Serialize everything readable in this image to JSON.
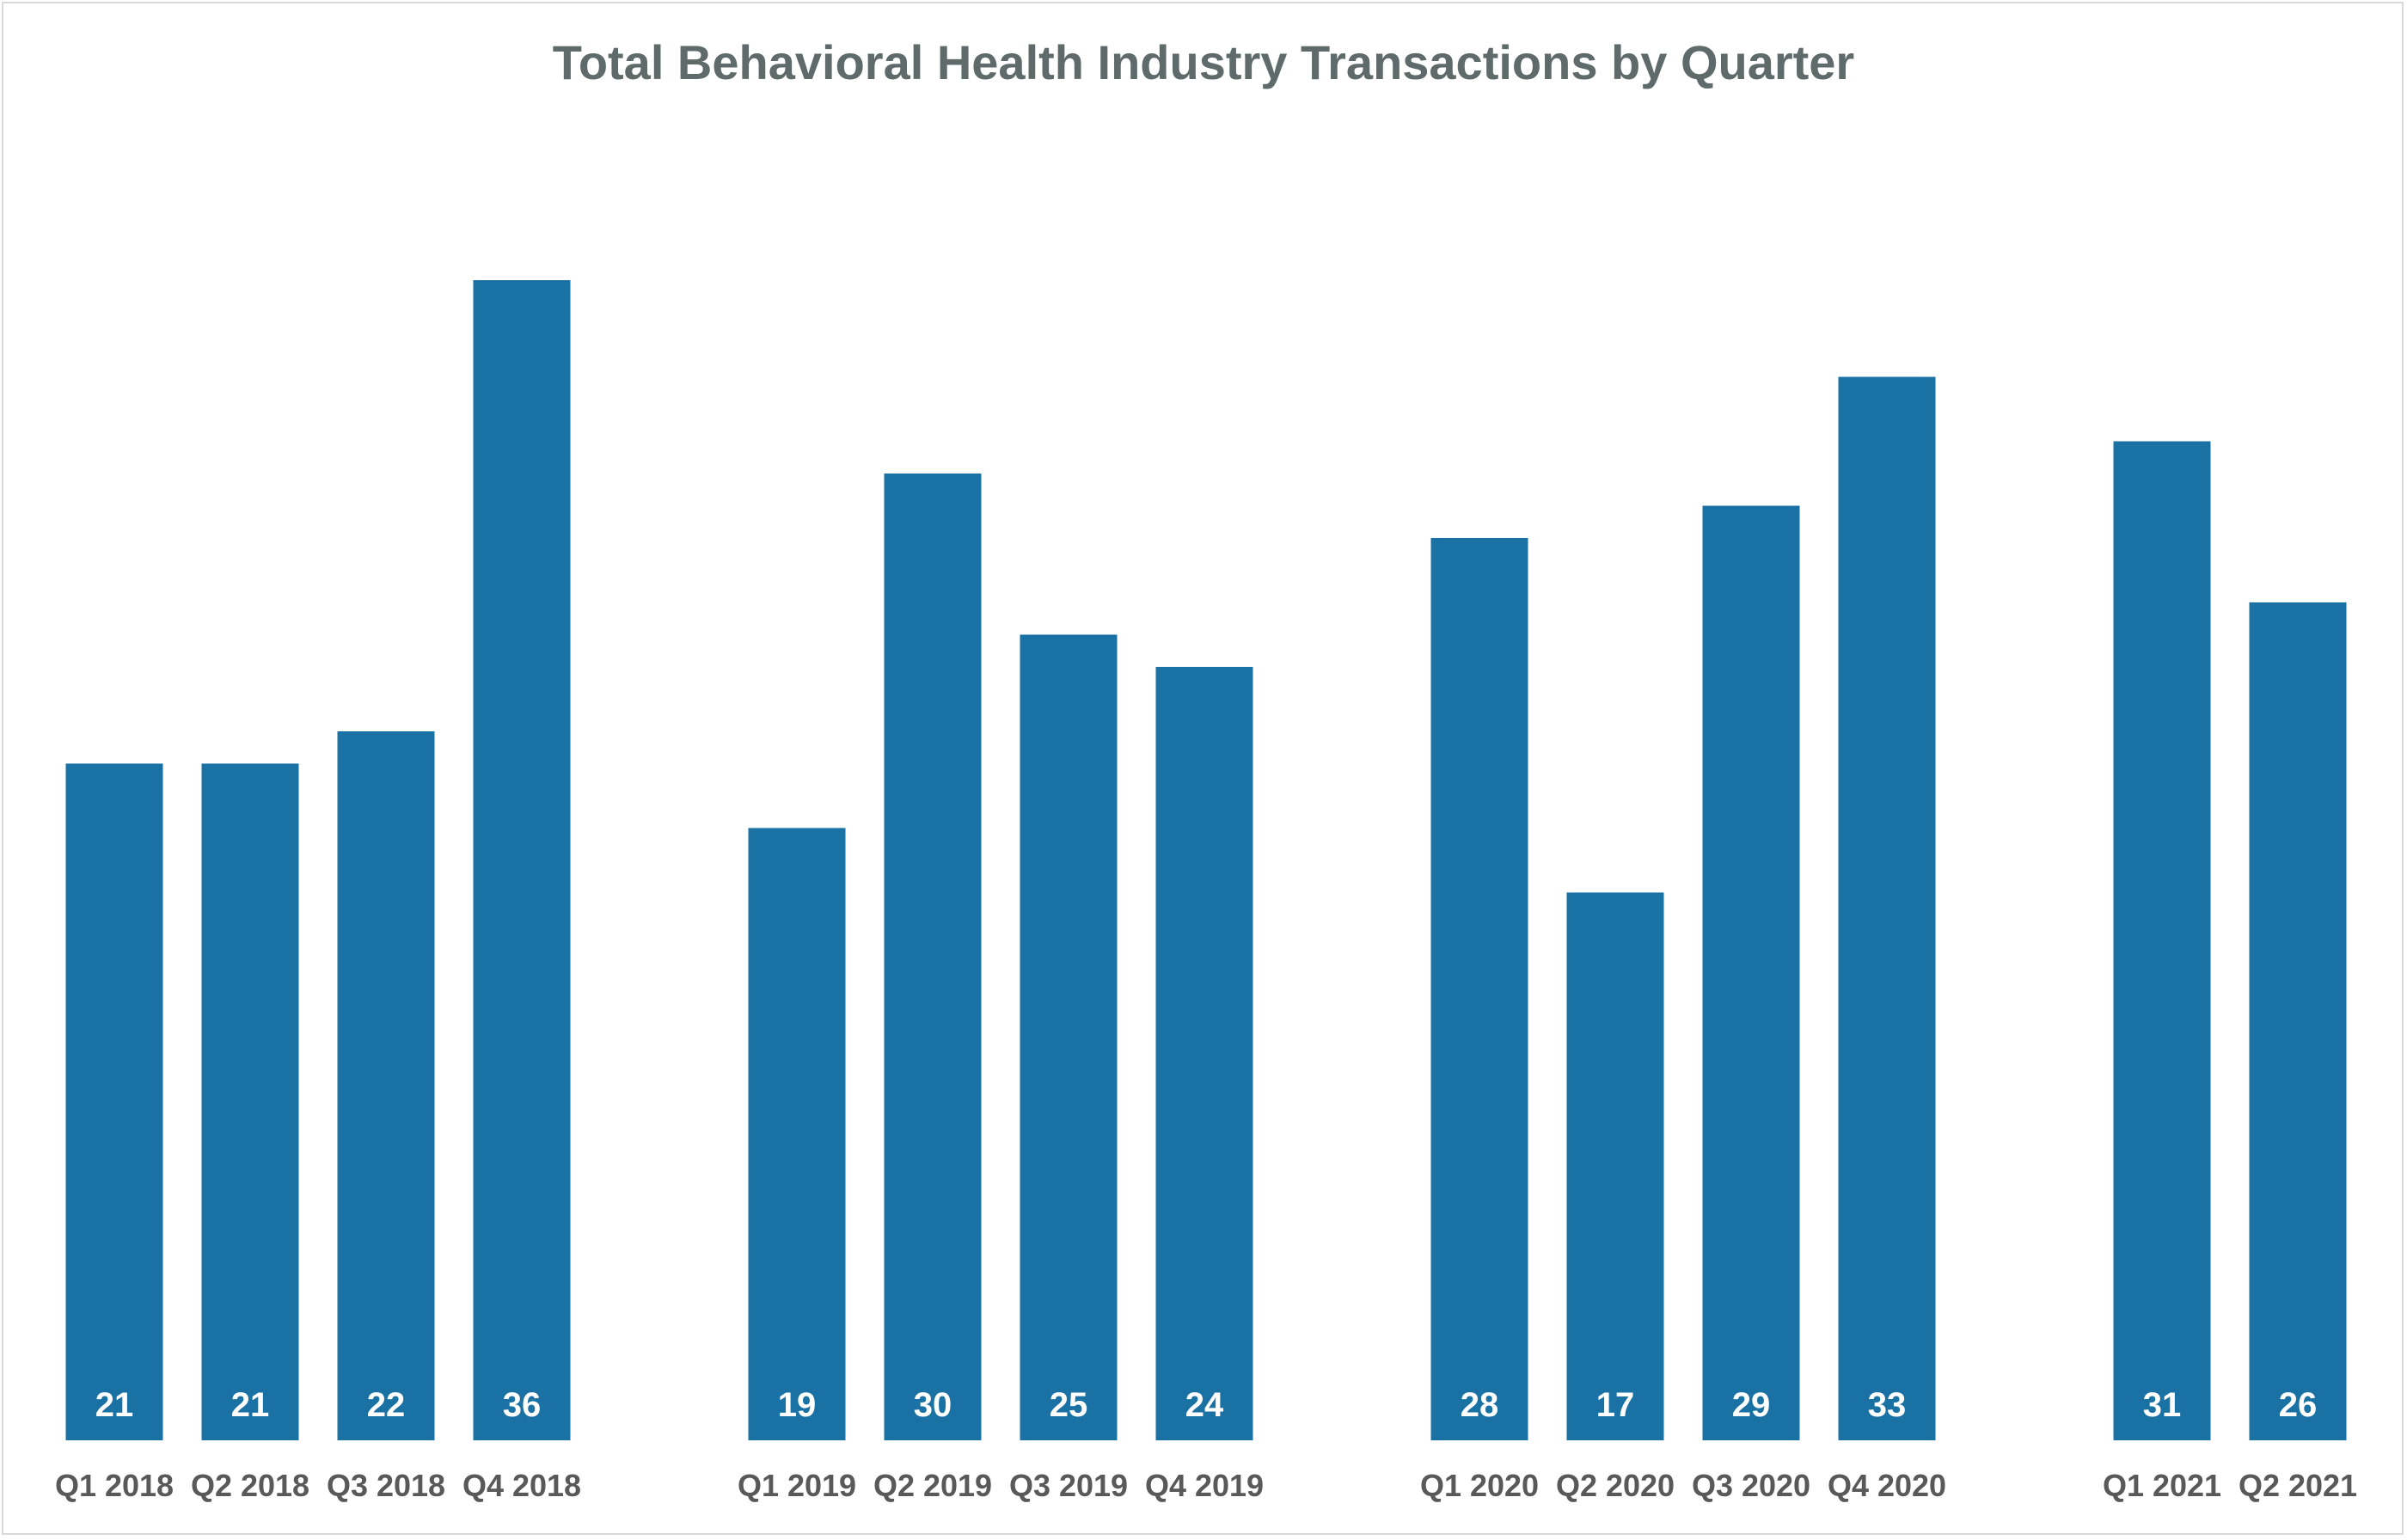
{
  "chart_data": {
    "type": "bar",
    "title": "Total Behavioral Health Industry Transactions by Quarter",
    "xlabel": "",
    "ylabel": "",
    "categories": [
      "Q1 2018",
      "Q2 2018",
      "Q3 2018",
      "Q4 2018",
      "Q1 2019",
      "Q2 2019",
      "Q3 2019",
      "Q4 2019",
      "Q1 2020",
      "Q2 2020",
      "Q3 2020",
      "Q4 2020",
      "Q1 2021",
      "Q2 2021"
    ],
    "values": [
      21,
      21,
      22,
      36,
      19,
      30,
      25,
      24,
      28,
      17,
      29,
      33,
      31,
      26
    ],
    "data_labels": [
      "21",
      "21",
      "22",
      "36",
      "19",
      "30",
      "25",
      "24",
      "28",
      "17",
      "29",
      "33",
      "31",
      "26"
    ],
    "ylim": [
      0,
      40
    ],
    "grid": false,
    "legend": "none",
    "bar_color": "#1a71a4"
  }
}
